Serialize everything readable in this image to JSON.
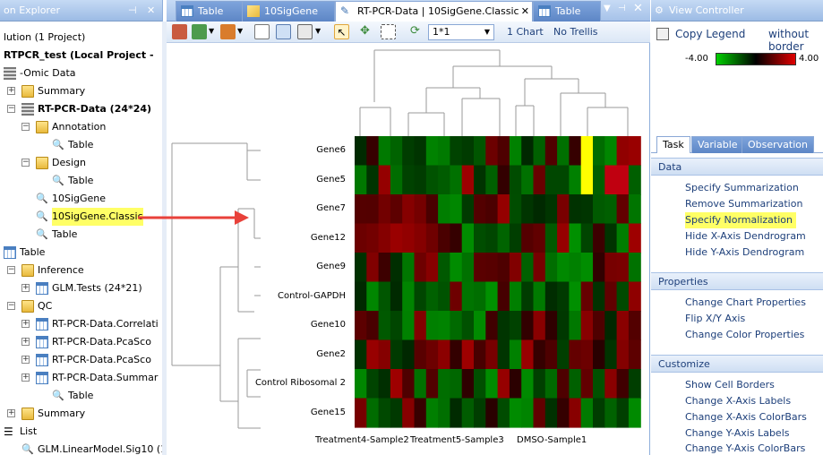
{
  "left_pane": {
    "title": "on Explorer",
    "solution": "lution (1 Project)",
    "project": "RTPCR_test (Local Project -",
    "items": [
      {
        "label": "-Omic Data"
      },
      {
        "label": "Summary"
      },
      {
        "label": "RT-PCR-Data (24*24)"
      },
      {
        "label": "Annotation"
      },
      {
        "label": "Table"
      },
      {
        "label": "Design"
      },
      {
        "label": "Table"
      },
      {
        "label": "10SigGene"
      },
      {
        "label": "10SigGene.Classic"
      },
      {
        "label": "Table"
      },
      {
        "label": "Table"
      },
      {
        "label": "Inference"
      },
      {
        "label": "GLM.Tests (24*21)"
      },
      {
        "label": "QC"
      },
      {
        "label": "RT-PCR-Data.Correlati"
      },
      {
        "label": "RT-PCR-Data.PcaSco"
      },
      {
        "label": "RT-PCR-Data.PcaSco"
      },
      {
        "label": "RT-PCR-Data.Summar"
      },
      {
        "label": "Table"
      },
      {
        "label": "Summary"
      },
      {
        "label": "List"
      },
      {
        "label": "GLM.LinearModel.Sig10 (1"
      }
    ]
  },
  "tabs": [
    {
      "label": "Table"
    },
    {
      "label": "10SigGene"
    },
    {
      "label": "RT-PCR-Data | 10SigGene.Classic"
    },
    {
      "label": "Table"
    }
  ],
  "toolbar": {
    "layout_value": "1*1",
    "chart_count": "1 Chart",
    "trellis": "No Trellis"
  },
  "heatmap": {
    "rows": [
      "Gene6",
      "Gene5",
      "Gene7",
      "Gene12",
      "Gene9",
      "Control-GAPDH",
      "Gene10",
      "Gene2",
      "Control Ribosomal 2",
      "Gene15"
    ],
    "col_labels": [
      "Treatment4-Sample2",
      "Treatment5-Sample3",
      "DMSO-Sample1"
    ]
  },
  "right_pane": {
    "title": "View Controller",
    "copy_legend": "Copy Legend",
    "without_border": "without border",
    "legend_min": "-4.00",
    "legend_max": "4.00",
    "tabs": [
      "Task",
      "Variable",
      "Observation"
    ],
    "sections": {
      "data": {
        "title": "Data",
        "links": [
          "Specify Summarization",
          "Remove Summarization",
          "Specify Normalization",
          "Hide X-Axis Dendrogram",
          "Hide Y-Axis Dendrogram"
        ]
      },
      "properties": {
        "title": "Properties",
        "links": [
          "Change Chart Properties",
          "Flip X/Y Axis",
          "Change Color Properties"
        ]
      },
      "customize": {
        "title": "Customize",
        "links": [
          "Show Cell Borders",
          "Change X-Axis Labels",
          "Change X-Axis ColorBars",
          "Change Y-Axis Labels",
          "Change Y-Axis ColorBars"
        ]
      }
    }
  },
  "colors": {
    "accent": "#5d86c6",
    "highlight": "#ffff66",
    "arrow": "#e8413a"
  }
}
